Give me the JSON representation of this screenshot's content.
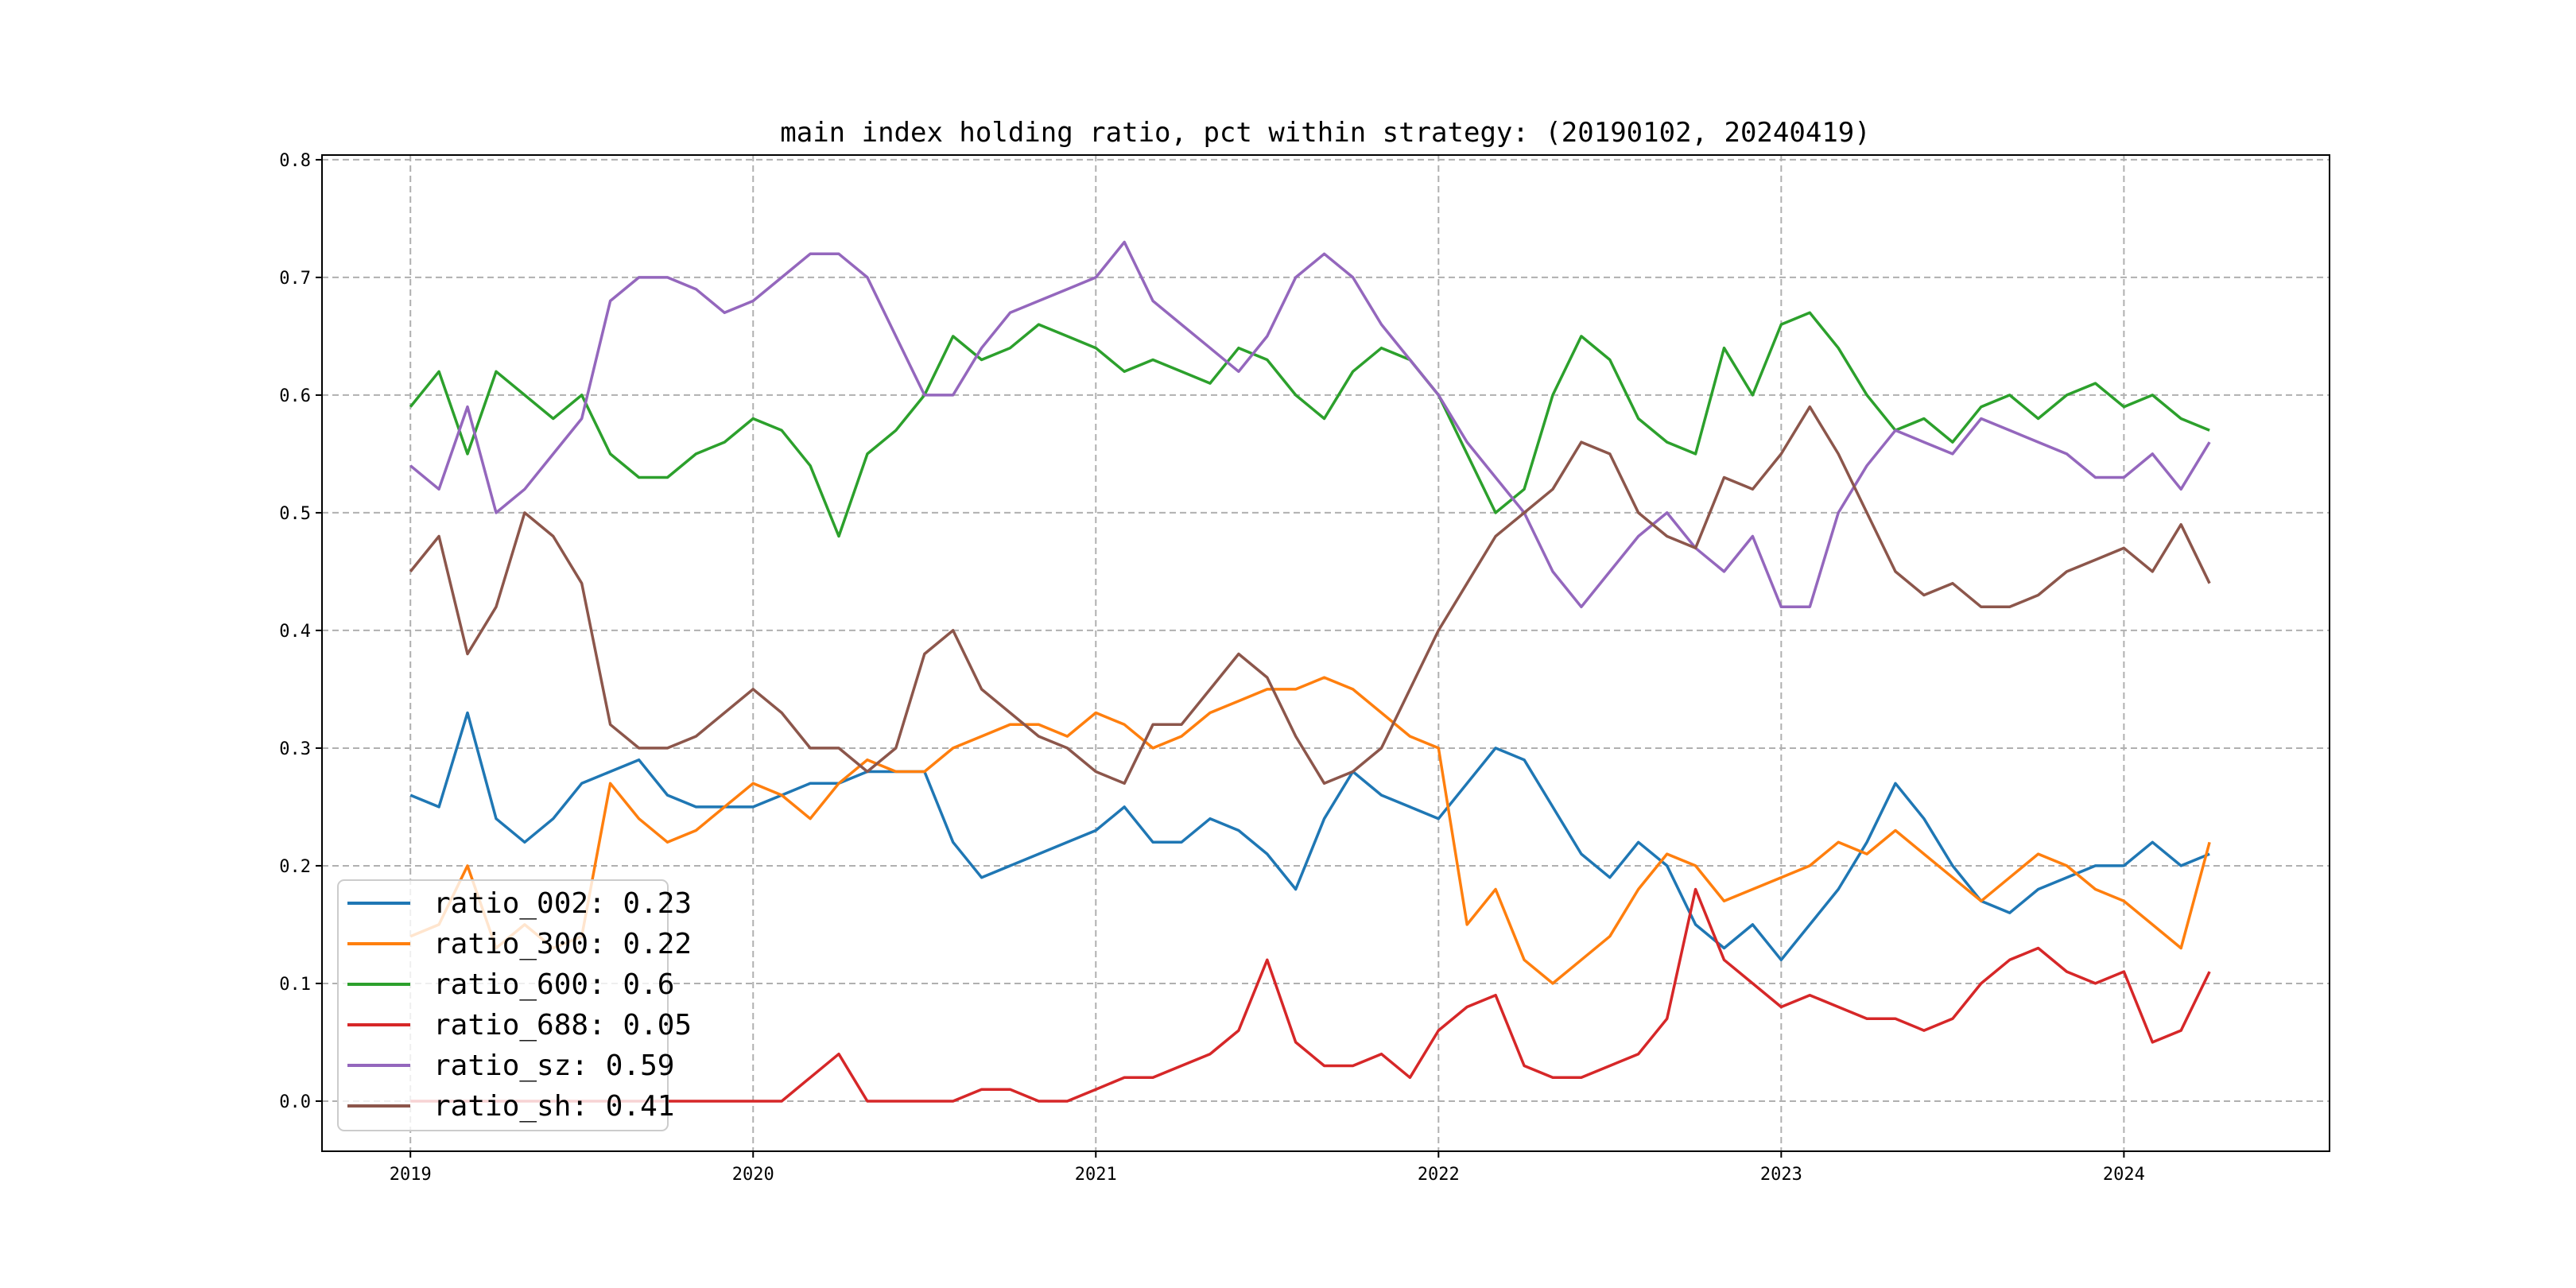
{
  "chart_data": {
    "type": "line",
    "title": "main index holding ratio, pct within strategy: (20190102, 20240419)",
    "xlabel": "",
    "ylabel": "",
    "xlim": [
      2018.742,
      2024.6
    ],
    "ylim": [
      -0.0426,
      0.804
    ],
    "grid": true,
    "legend_position": "lower-left",
    "x_ticks": [
      2019,
      2020,
      2021,
      2022,
      2023,
      2024
    ],
    "x_tick_labels": [
      "2019",
      "2020",
      "2021",
      "2022",
      "2023",
      "2024"
    ],
    "y_ticks": [
      0.0,
      0.1,
      0.2,
      0.3,
      0.4,
      0.5,
      0.6,
      0.7,
      0.8
    ],
    "y_tick_labels": [
      "0.0",
      "0.1",
      "0.2",
      "0.3",
      "0.4",
      "0.5",
      "0.6",
      "0.7",
      "0.8"
    ],
    "x_start": 2019.0,
    "x_step_months": 1,
    "series": [
      {
        "name": "ratio_002",
        "label": "ratio_002: 0.23",
        "color": "#1f77b4",
        "values": [
          0.26,
          0.25,
          0.33,
          0.24,
          0.22,
          0.24,
          0.27,
          0.28,
          0.29,
          0.26,
          0.25,
          0.25,
          0.25,
          0.26,
          0.27,
          0.27,
          0.28,
          0.28,
          0.28,
          0.22,
          0.19,
          0.2,
          0.21,
          0.22,
          0.23,
          0.25,
          0.22,
          0.22,
          0.24,
          0.23,
          0.21,
          0.18,
          0.24,
          0.28,
          0.26,
          0.25,
          0.24,
          0.27,
          0.3,
          0.29,
          0.25,
          0.21,
          0.19,
          0.22,
          0.2,
          0.15,
          0.13,
          0.15,
          0.12,
          0.15,
          0.18,
          0.22,
          0.27,
          0.24,
          0.2,
          0.17,
          0.16,
          0.18,
          0.19,
          0.2,
          0.2,
          0.22,
          0.2,
          0.21
        ]
      },
      {
        "name": "ratio_300",
        "label": "ratio_300: 0.22",
        "color": "#ff7f0e",
        "values": [
          0.14,
          0.15,
          0.2,
          0.13,
          0.15,
          0.13,
          0.14,
          0.27,
          0.24,
          0.22,
          0.23,
          0.25,
          0.27,
          0.26,
          0.24,
          0.27,
          0.29,
          0.28,
          0.28,
          0.3,
          0.31,
          0.32,
          0.32,
          0.31,
          0.33,
          0.32,
          0.3,
          0.31,
          0.33,
          0.34,
          0.35,
          0.35,
          0.36,
          0.35,
          0.33,
          0.31,
          0.3,
          0.15,
          0.18,
          0.12,
          0.1,
          0.12,
          0.14,
          0.18,
          0.21,
          0.2,
          0.17,
          0.18,
          0.19,
          0.2,
          0.22,
          0.21,
          0.23,
          0.21,
          0.19,
          0.17,
          0.19,
          0.21,
          0.2,
          0.18,
          0.17,
          0.15,
          0.13,
          0.22
        ]
      },
      {
        "name": "ratio_600",
        "label": "ratio_600: 0.6",
        "color": "#2ca02c",
        "values": [
          0.59,
          0.62,
          0.55,
          0.62,
          0.6,
          0.58,
          0.6,
          0.55,
          0.53,
          0.53,
          0.55,
          0.56,
          0.58,
          0.57,
          0.54,
          0.48,
          0.55,
          0.57,
          0.6,
          0.65,
          0.63,
          0.64,
          0.66,
          0.65,
          0.64,
          0.62,
          0.63,
          0.62,
          0.61,
          0.64,
          0.63,
          0.6,
          0.58,
          0.62,
          0.64,
          0.63,
          0.6,
          0.55,
          0.5,
          0.52,
          0.6,
          0.65,
          0.63,
          0.58,
          0.56,
          0.55,
          0.64,
          0.6,
          0.66,
          0.67,
          0.64,
          0.6,
          0.57,
          0.58,
          0.56,
          0.59,
          0.6,
          0.58,
          0.6,
          0.61,
          0.59,
          0.6,
          0.58,
          0.57
        ]
      },
      {
        "name": "ratio_688",
        "label": "ratio_688: 0.05",
        "color": "#d62728",
        "values": [
          0,
          0,
          0,
          0,
          0,
          0,
          0,
          0,
          0,
          0,
          0,
          0,
          0,
          0,
          0.02,
          0.04,
          0,
          0,
          0,
          0,
          0.01,
          0.01,
          0,
          0,
          0.01,
          0.02,
          0.02,
          0.03,
          0.04,
          0.06,
          0.12,
          0.05,
          0.03,
          0.03,
          0.04,
          0.02,
          0.06,
          0.08,
          0.09,
          0.03,
          0.02,
          0.02,
          0.03,
          0.04,
          0.07,
          0.18,
          0.12,
          0.1,
          0.08,
          0.09,
          0.08,
          0.07,
          0.07,
          0.06,
          0.07,
          0.1,
          0.12,
          0.13,
          0.11,
          0.1,
          0.11,
          0.05,
          0.06,
          0.11
        ]
      },
      {
        "name": "ratio_sz",
        "label": "ratio_sz: 0.59",
        "color": "#9467bd",
        "values": [
          0.54,
          0.52,
          0.59,
          0.5,
          0.52,
          0.55,
          0.58,
          0.68,
          0.7,
          0.7,
          0.69,
          0.67,
          0.68,
          0.7,
          0.72,
          0.72,
          0.7,
          0.65,
          0.6,
          0.6,
          0.64,
          0.67,
          0.68,
          0.69,
          0.7,
          0.73,
          0.68,
          0.66,
          0.64,
          0.62,
          0.65,
          0.7,
          0.72,
          0.7,
          0.66,
          0.63,
          0.6,
          0.56,
          0.53,
          0.5,
          0.45,
          0.42,
          0.45,
          0.48,
          0.5,
          0.47,
          0.45,
          0.48,
          0.42,
          0.42,
          0.5,
          0.54,
          0.57,
          0.56,
          0.55,
          0.58,
          0.57,
          0.56,
          0.55,
          0.53,
          0.53,
          0.55,
          0.52,
          0.56
        ]
      },
      {
        "name": "ratio_sh",
        "label": "ratio_sh: 0.41",
        "color": "#8c564b",
        "values": [
          0.45,
          0.48,
          0.38,
          0.42,
          0.5,
          0.48,
          0.44,
          0.32,
          0.3,
          0.3,
          0.31,
          0.33,
          0.35,
          0.33,
          0.3,
          0.3,
          0.28,
          0.3,
          0.38,
          0.4,
          0.35,
          0.33,
          0.31,
          0.3,
          0.28,
          0.27,
          0.32,
          0.32,
          0.35,
          0.38,
          0.36,
          0.31,
          0.27,
          0.28,
          0.3,
          0.35,
          0.4,
          0.44,
          0.48,
          0.5,
          0.52,
          0.56,
          0.55,
          0.5,
          0.48,
          0.47,
          0.53,
          0.52,
          0.55,
          0.59,
          0.55,
          0.5,
          0.45,
          0.43,
          0.44,
          0.42,
          0.42,
          0.43,
          0.45,
          0.46,
          0.47,
          0.45,
          0.49,
          0.44
        ]
      }
    ]
  }
}
